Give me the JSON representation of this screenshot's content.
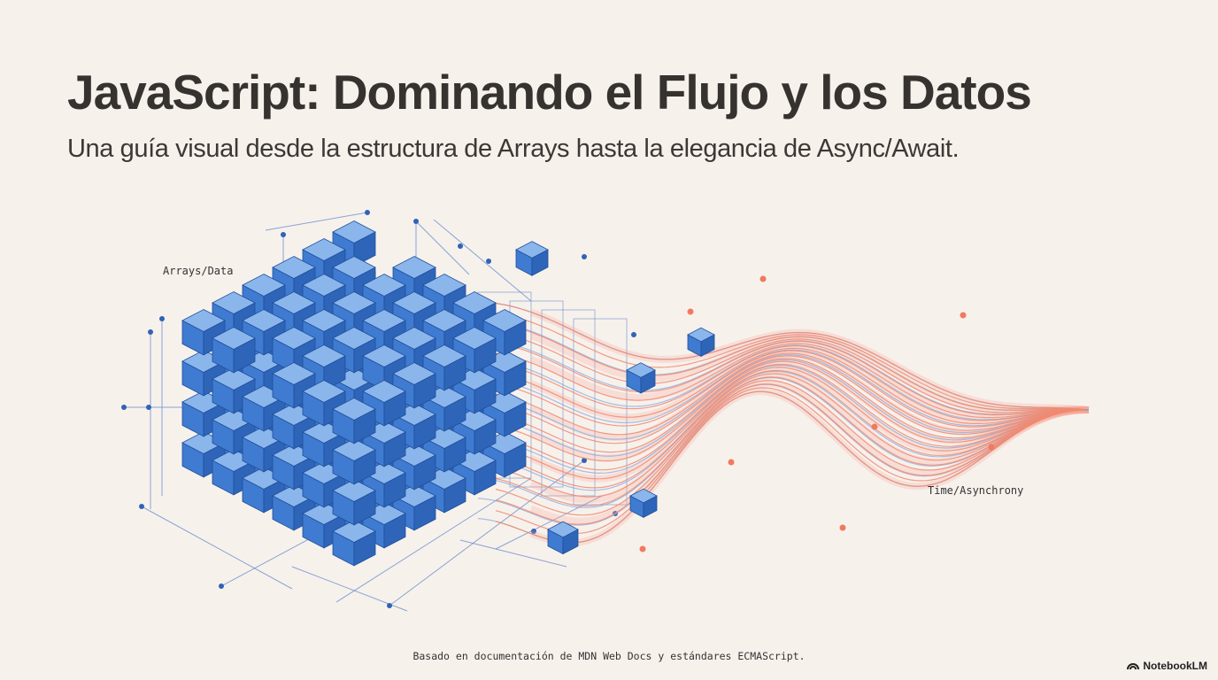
{
  "header": {
    "title": "JavaScript: Dominando el Flujo y los Datos",
    "subtitle": "Una guía visual desde la estructura de Arrays hasta la elegancia de Async/Await."
  },
  "illustration": {
    "left_label": "Arrays/Data",
    "right_label": "Time/Asynchrony"
  },
  "footer": {
    "note": "Basado en documentación de MDN Web Docs y estándares ECMAScript.",
    "brand": "NotebookLM"
  }
}
